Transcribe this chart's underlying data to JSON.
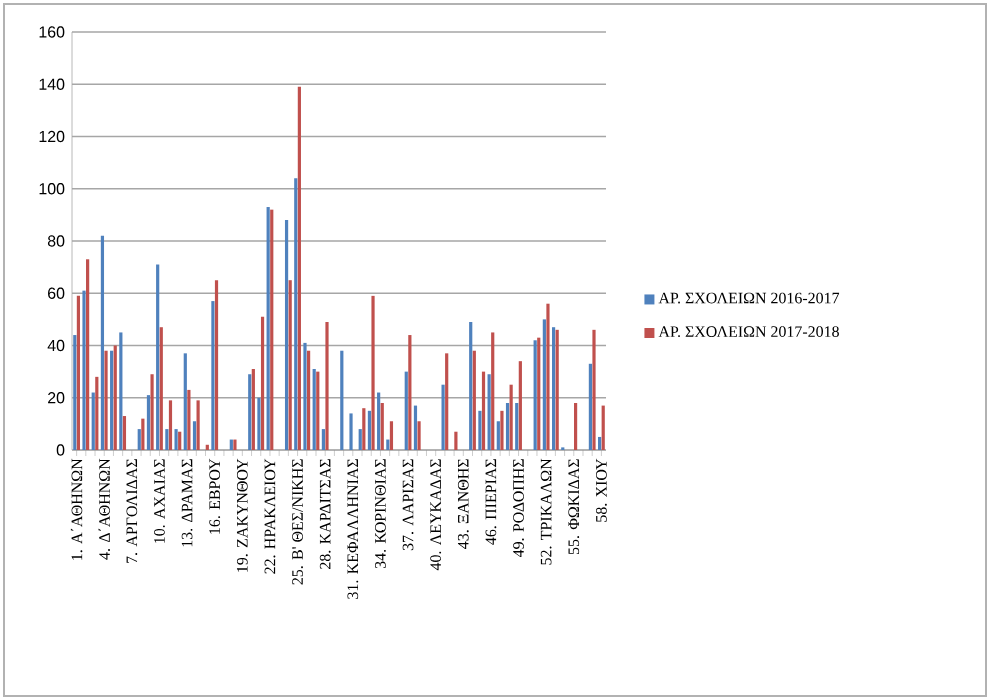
{
  "chart_data": {
    "type": "bar",
    "categories": [
      "1. Α΄ΑΘΗΝΩΝ",
      null,
      null,
      "4. Δ΄ΑΘΗΝΩΝ",
      null,
      null,
      "7. ΑΡΓΟΛΙΔΑΣ",
      null,
      null,
      "10. ΑΧΑΙΑΣ",
      null,
      null,
      "13. ΔΡΑΜΑΣ",
      null,
      null,
      "16. ΕΒΡΟΥ",
      null,
      null,
      "19. ΖΑΚΥΝΘΟΥ",
      null,
      null,
      "22. ΗΡΑΚΛΕΙΟΥ",
      null,
      null,
      "25. Β' ΘΕΣ/ΝΙΚΗΣ",
      null,
      null,
      "28. ΚΑΡΔΙΤΣΑΣ",
      null,
      null,
      "31. ΚΕΦΑΛΛΗΝΙΑΣ",
      null,
      null,
      "34. ΚΟΡΙΝΘΙΑΣ",
      null,
      null,
      "37. ΛΑΡΙΣΑΣ",
      null,
      null,
      "40. ΛΕΥΚΑΔΑΣ",
      null,
      null,
      "43. ΞΑΝΘΗΣ",
      null,
      null,
      "46. ΠΙΕΡΙΑΣ",
      null,
      null,
      "49. ΡΟΔΟΠΗΣ",
      null,
      null,
      "52. ΤΡΙΚΑΛΩΝ",
      null,
      null,
      "55. ΦΩΚΙΔΑΣ",
      null,
      null,
      "58. ΧΙΟΥ"
    ],
    "series": [
      {
        "name": "ΑΡ. ΣΧΟΛΕΙΩΝ  2016-2017",
        "color": "#4f81bd",
        "values": [
          44,
          61,
          22,
          82,
          38,
          45,
          0,
          8,
          21,
          71,
          8,
          8,
          37,
          11,
          0,
          57,
          0,
          4,
          0,
          29,
          20,
          93,
          0,
          88,
          104,
          41,
          31,
          8,
          0,
          38,
          14,
          8,
          15,
          22,
          4,
          0,
          30,
          17,
          0,
          0,
          25,
          0,
          0,
          49,
          15,
          29,
          11,
          18,
          18,
          0,
          42,
          50,
          47,
          1,
          0,
          0,
          33,
          5
        ]
      },
      {
        "name": "ΑΡ. ΣΧΟΛΕΙΩΝ     2017-2018",
        "color": "#c0504d",
        "values": [
          59,
          73,
          28,
          38,
          40,
          13,
          0,
          12,
          29,
          47,
          19,
          7,
          23,
          19,
          2,
          65,
          0,
          4,
          0,
          31,
          51,
          92,
          0,
          65,
          139,
          38,
          30,
          49,
          0,
          0,
          0,
          16,
          59,
          18,
          11,
          0,
          44,
          11,
          0,
          0,
          37,
          7,
          0,
          38,
          30,
          45,
          15,
          25,
          34,
          0,
          43,
          56,
          46,
          0,
          18,
          0,
          46,
          17
        ]
      }
    ],
    "ylim": [
      0,
      160
    ],
    "yticks": [
      0,
      20,
      40,
      60,
      80,
      100,
      120,
      140,
      160
    ],
    "grid": "y",
    "legend": "right"
  }
}
